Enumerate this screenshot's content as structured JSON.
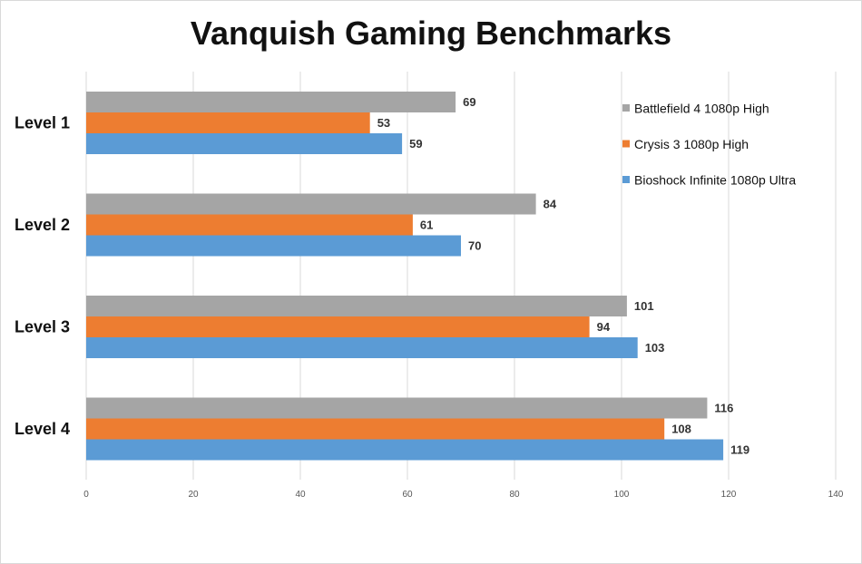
{
  "chart_data": {
    "type": "bar",
    "orientation": "horizontal",
    "title": "Vanquish Gaming Benchmarks",
    "categories": [
      "Level 1",
      "Level 2",
      "Level 3",
      "Level 4"
    ],
    "series": [
      {
        "name": "Battlefield 4 1080p High",
        "color": "#a5a5a5",
        "values": [
          69,
          84,
          101,
          116
        ]
      },
      {
        "name": "Crysis 3 1080p High",
        "color": "#ed7d31",
        "values": [
          53,
          61,
          94,
          108
        ]
      },
      {
        "name": "Bioshock Infinite 1080p Ultra",
        "color": "#5b9bd5",
        "values": [
          59,
          70,
          103,
          119
        ]
      }
    ],
    "xlim": [
      0,
      140
    ],
    "xticks": [
      0,
      20,
      40,
      60,
      80,
      100,
      120,
      140
    ],
    "xlabel": "",
    "ylabel": "",
    "grid": true,
    "legend_position": "top-right",
    "data_labels": true
  }
}
